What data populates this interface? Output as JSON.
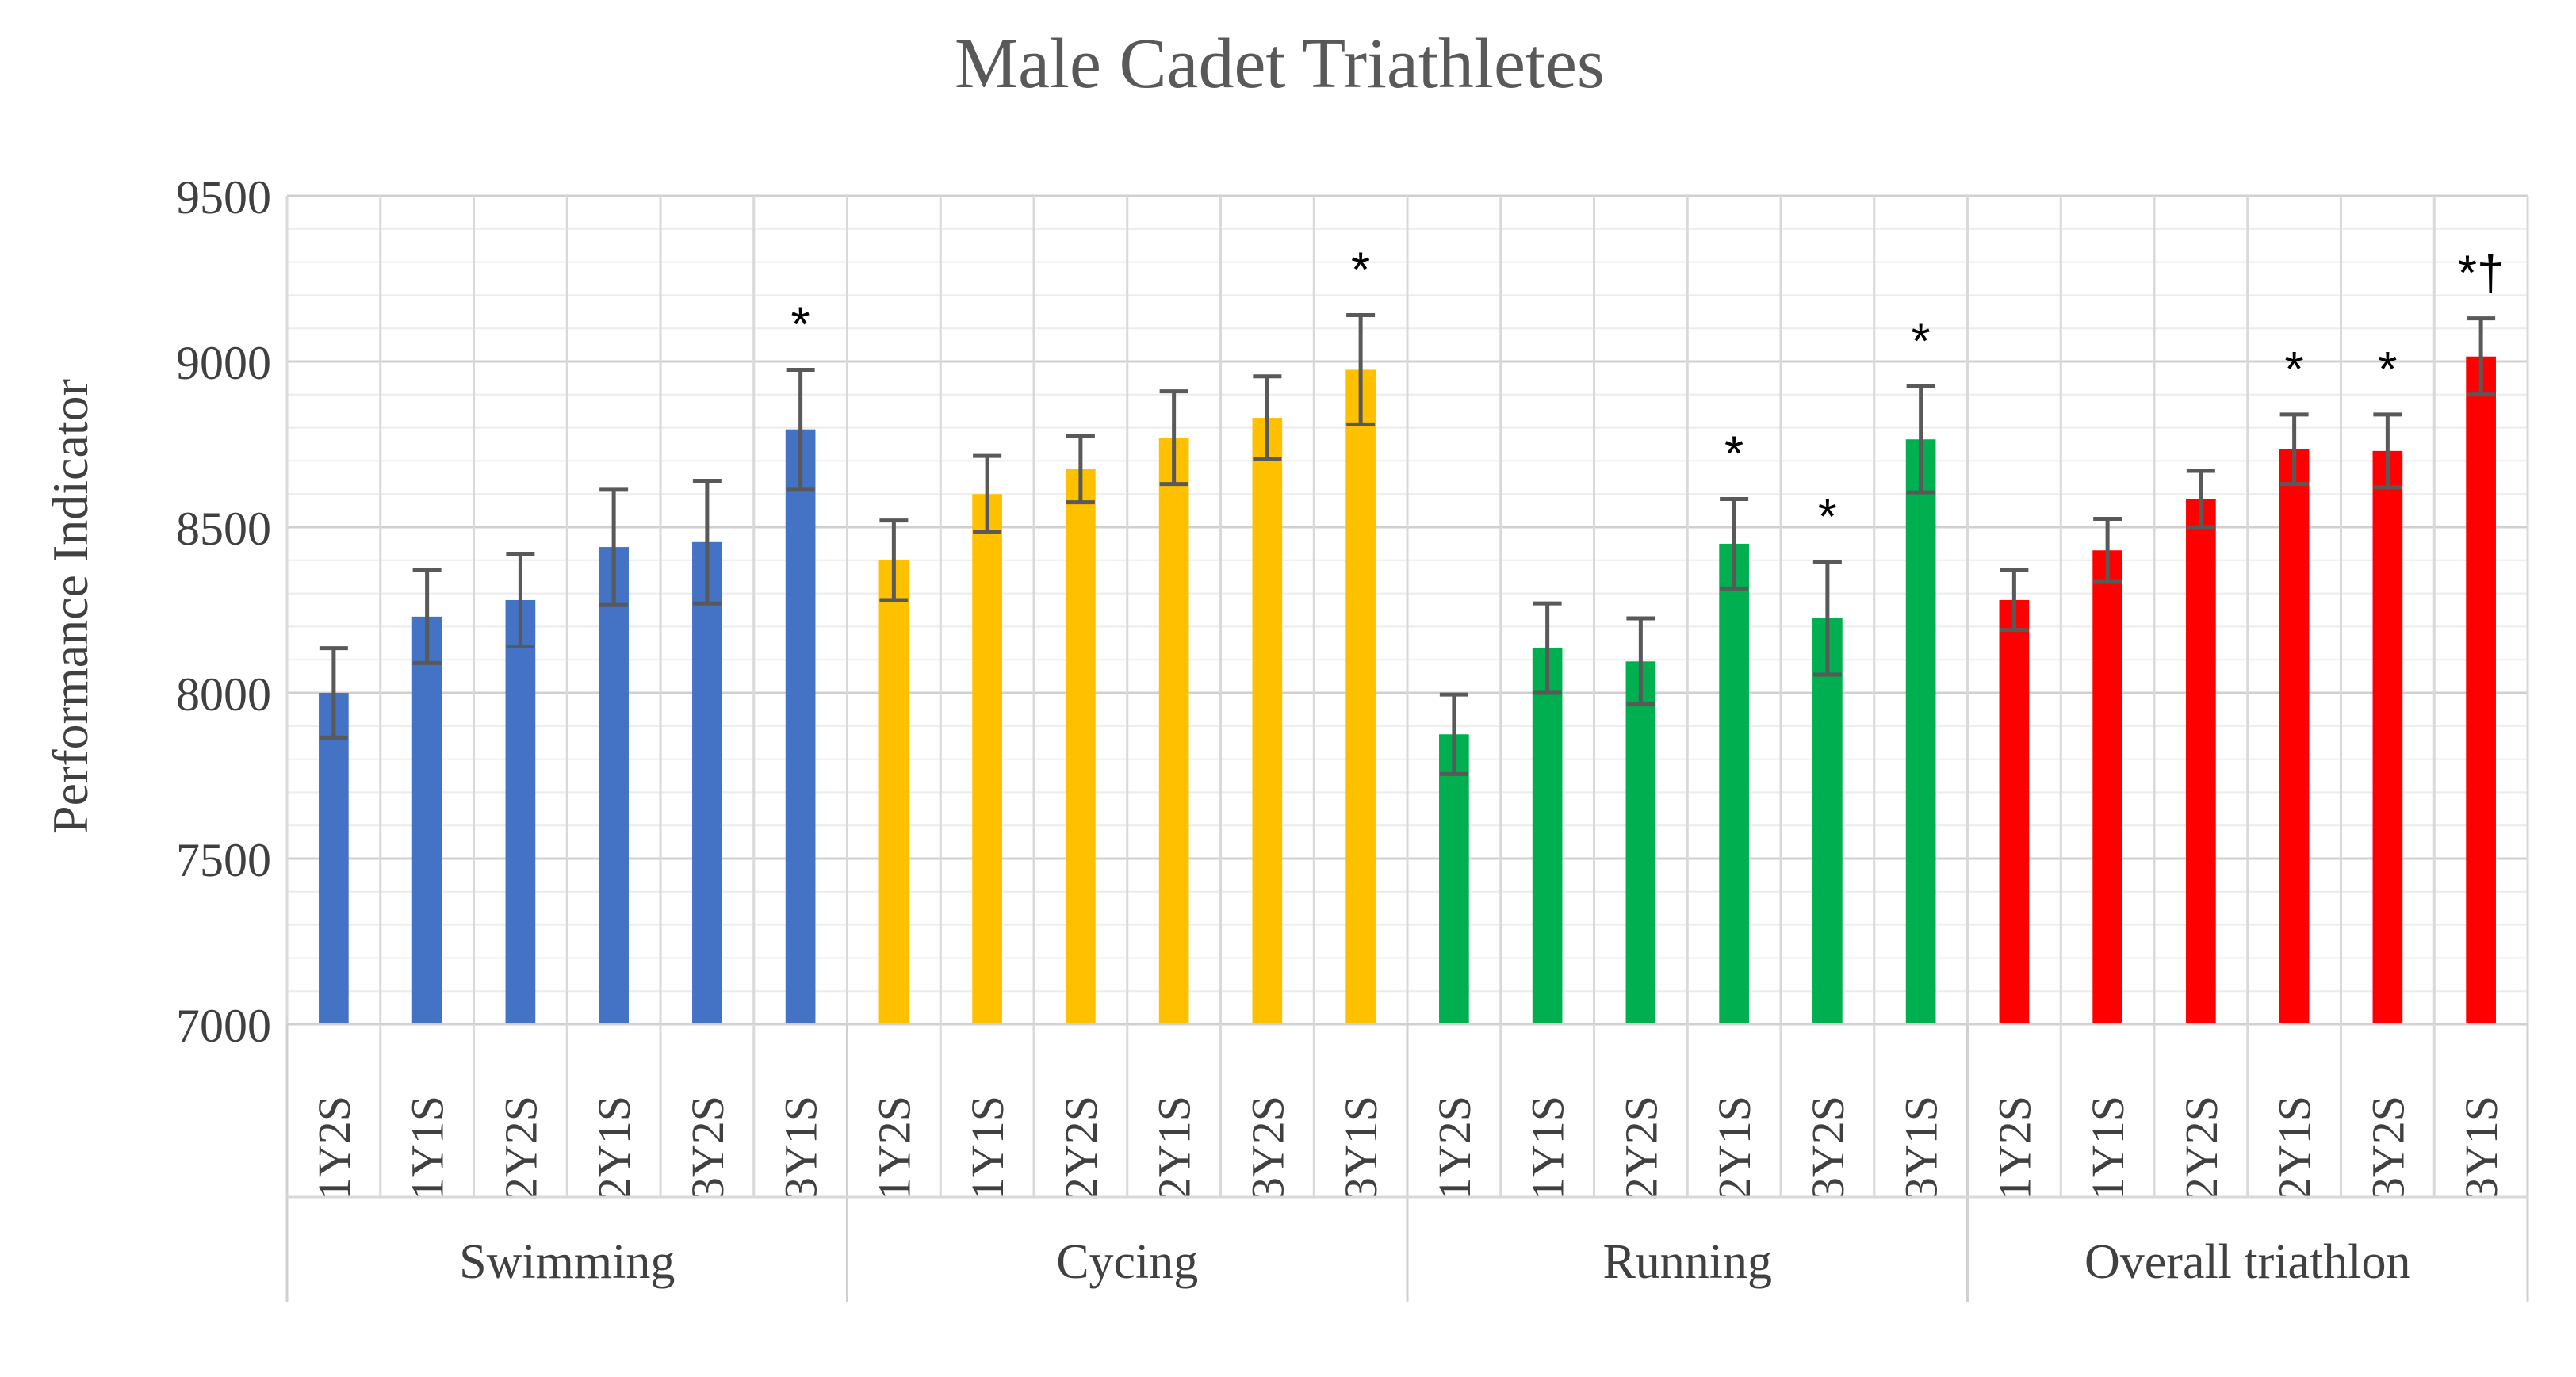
{
  "chart_data": {
    "type": "bar",
    "title": "Male Cadet Triathletes",
    "ylabel": "Performance Indicator",
    "xlabel": "",
    "ylim": [
      7000,
      9500
    ],
    "yticks": [
      7000,
      7500,
      8000,
      8500,
      9000,
      9500
    ],
    "grid": true,
    "groups": [
      {
        "name": "Swimming",
        "color": "#4472C4",
        "categories": [
          "1Y2S",
          "1Y1S",
          "2Y2S",
          "2Y1S",
          "3Y2S",
          "3Y1S"
        ],
        "values": [
          8000,
          8230,
          8280,
          8440,
          8455,
          8795
        ],
        "errors": [
          135,
          140,
          140,
          175,
          185,
          180
        ],
        "significance": [
          "",
          "",
          "",
          "",
          "",
          "*"
        ]
      },
      {
        "name": "Cycing",
        "color": "#FFC000",
        "categories": [
          "1Y2S",
          "1Y1S",
          "2Y2S",
          "2Y1S",
          "3Y2S",
          "3Y1S"
        ],
        "values": [
          8400,
          8600,
          8675,
          8770,
          8830,
          8975
        ],
        "errors": [
          120,
          115,
          100,
          140,
          125,
          165
        ],
        "significance": [
          "",
          "",
          "",
          "",
          "",
          "*"
        ]
      },
      {
        "name": "Running",
        "color": "#00B050",
        "categories": [
          "1Y2S",
          "1Y1S",
          "2Y2S",
          "2Y1S",
          "3Y2S",
          "3Y1S"
        ],
        "values": [
          7875,
          8135,
          8095,
          8450,
          8225,
          8765
        ],
        "errors": [
          120,
          135,
          130,
          135,
          170,
          160
        ],
        "significance": [
          "",
          "",
          "",
          "*",
          "*",
          "*"
        ]
      },
      {
        "name": "Overall triathlon",
        "color": "#FF0000",
        "categories": [
          "1Y2S",
          "1Y1S",
          "2Y2S",
          "2Y1S",
          "3Y2S",
          "3Y1S"
        ],
        "values": [
          8280,
          8430,
          8585,
          8735,
          8730,
          9015
        ],
        "errors": [
          90,
          95,
          85,
          105,
          110,
          115
        ],
        "significance": [
          "",
          "",
          "",
          "*",
          "*",
          "*†"
        ]
      }
    ]
  }
}
